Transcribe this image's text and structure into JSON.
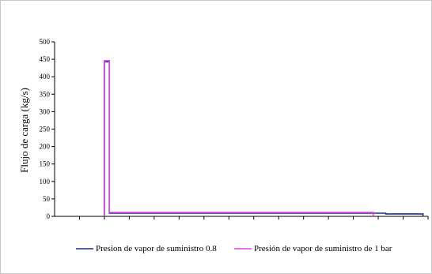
{
  "chart_data": {
    "type": "line",
    "title": "",
    "xlabel": "",
    "ylabel": "Flujo de carga (kg/s)",
    "ylim": [
      0,
      500
    ],
    "yticks": [
      0,
      50,
      100,
      150,
      200,
      250,
      300,
      350,
      400,
      450,
      500
    ],
    "xlim": [
      0,
      15
    ],
    "x_ticks_labeled": false,
    "grid": false,
    "legend_position": "bottom",
    "series": [
      {
        "name": "Presion de vapor de suministro 0.8",
        "color": "#1f2d8a",
        "x": [
          2.0,
          2.0,
          2.2,
          2.2,
          13.3,
          13.3,
          14.8,
          14.8
        ],
        "y": [
          0,
          443,
          443,
          9,
          9,
          7,
          7,
          0
        ]
      },
      {
        "name": "Presión de vapor de suministro de 1 bar",
        "color": "#e040e8",
        "x": [
          2.0,
          2.0,
          2.2,
          2.2,
          12.8,
          12.8
        ],
        "y": [
          0,
          446,
          446,
          11,
          11,
          0
        ]
      }
    ]
  }
}
